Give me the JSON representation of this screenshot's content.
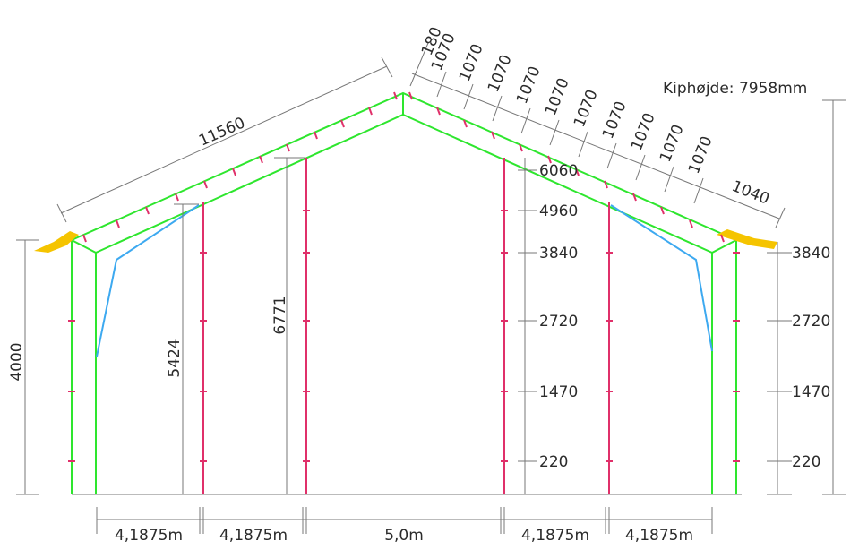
{
  "diagram": {
    "ridge_label": "Kiphøjde: 7958mm",
    "rafter_length": "11560",
    "ridge_offset": "180",
    "rafter_spacing": [
      "1070",
      "1070",
      "1070",
      "1070",
      "1070",
      "1070",
      "1070",
      "1070",
      "1070",
      "1070"
    ],
    "eave_segment": "1040",
    "wall_height": "4000",
    "post_height_inner": "5424",
    "post_height_center": "6771",
    "center_heights": [
      "6060",
      "4960",
      "3840",
      "2720",
      "1470",
      "220"
    ],
    "right_heights": [
      "3840",
      "2720",
      "1470",
      "220"
    ],
    "bay_widths": [
      "4,1875m",
      "4,1875m",
      "5,0m",
      "4,1875m",
      "4,1875m"
    ],
    "colors": {
      "frame": "#2ee62e",
      "posts": "#e0306a",
      "braces": "#3da9f0",
      "gutters": "#f5c400",
      "dimension": "#777777"
    }
  }
}
